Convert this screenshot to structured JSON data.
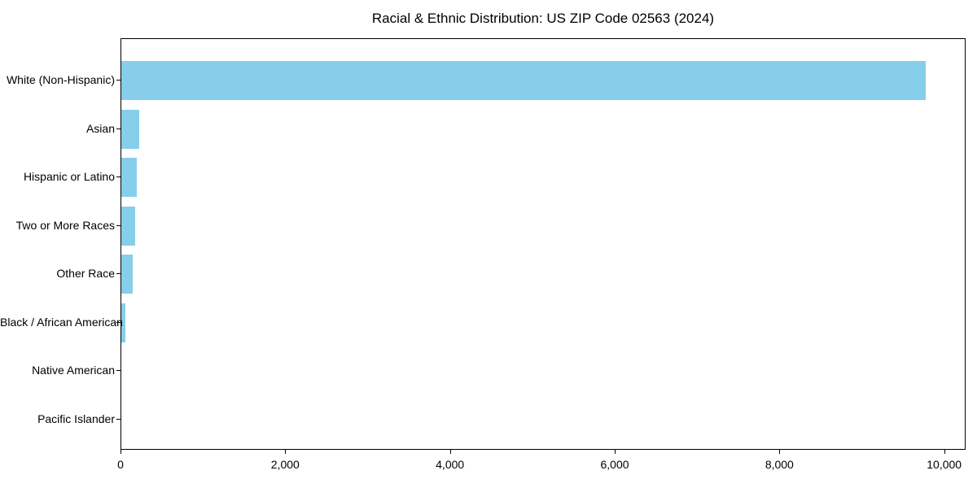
{
  "chart_data": {
    "type": "bar",
    "orientation": "horizontal",
    "title": "Racial & Ethnic Distribution: US ZIP Code 02563 (2024)",
    "categories": [
      "White (Non-Hispanic)",
      "Asian",
      "Hispanic or Latino",
      "Two or More Races",
      "Other Race",
      "Black / African American",
      "Native American",
      "Pacific Islander"
    ],
    "values": [
      9770,
      220,
      190,
      165,
      140,
      45,
      0,
      0
    ],
    "xlabel": "",
    "ylabel": "",
    "xlim": [
      0,
      10260
    ],
    "x_ticks": [
      0,
      2000,
      4000,
      6000,
      8000,
      10000
    ],
    "x_tick_labels": [
      "0",
      "2,000",
      "4,000",
      "6,000",
      "8,000",
      "10,000"
    ],
    "bar_color": "#87CEEB",
    "axis_color": "#000000",
    "grid": false,
    "legend": false
  }
}
